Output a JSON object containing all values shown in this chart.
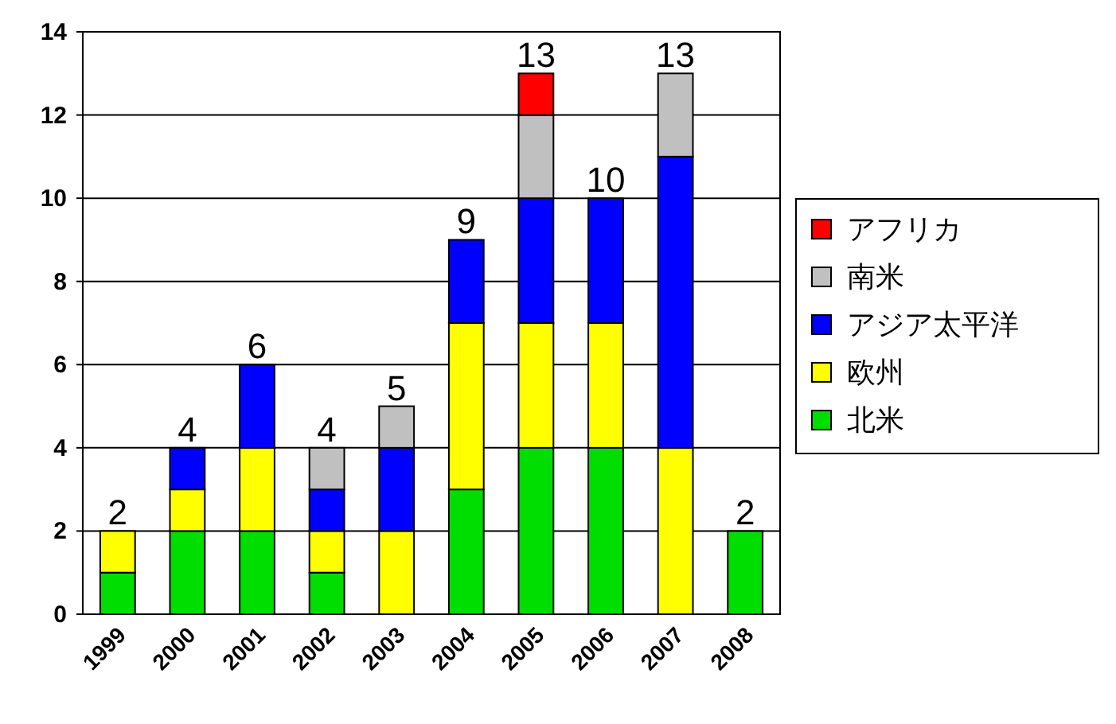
{
  "chart_data": {
    "type": "bar",
    "stacked": true,
    "categories": [
      "1999",
      "2000",
      "2001",
      "2002",
      "2003",
      "2004",
      "2005",
      "2006",
      "2007",
      "2008"
    ],
    "series": [
      {
        "name": "北米",
        "color": "#00dd00",
        "values": [
          1,
          2,
          2,
          1,
          null,
          3,
          4,
          4,
          null,
          2
        ]
      },
      {
        "name": "欧州",
        "color": "#ffff00",
        "values": [
          1,
          1,
          2,
          1,
          2,
          4,
          3,
          3,
          4,
          null
        ]
      },
      {
        "name": "アジア太平洋",
        "color": "#0000ff",
        "values": [
          null,
          1,
          2,
          1,
          2,
          2,
          3,
          3,
          7,
          null
        ]
      },
      {
        "name": "南米",
        "color": "#c0c0c0",
        "values": [
          null,
          null,
          null,
          1,
          1,
          null,
          2,
          null,
          2,
          null
        ]
      },
      {
        "name": "アフリカ",
        "color": "#ff0000",
        "values": [
          null,
          null,
          null,
          null,
          null,
          null,
          1,
          null,
          null,
          null
        ]
      }
    ],
    "totals": [
      "2",
      "4",
      "6",
      "4",
      "5",
      "9",
      "13",
      "10",
      "13",
      "2"
    ],
    "ylim": [
      0,
      14
    ],
    "yticks": [
      0,
      2,
      4,
      6,
      8,
      10,
      12,
      14
    ],
    "grid": "y",
    "legend": "right"
  }
}
